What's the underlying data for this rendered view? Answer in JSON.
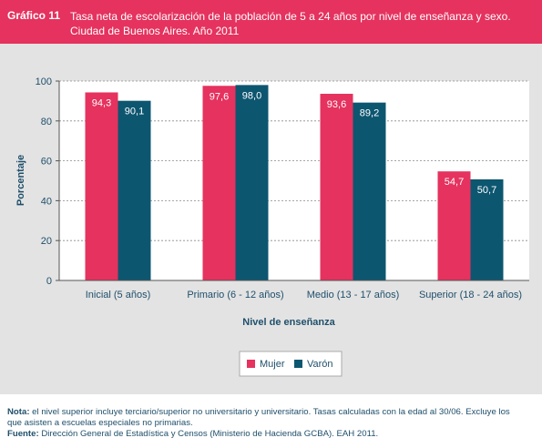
{
  "header": {
    "label": "Gráfico 11",
    "title_line1": "Tasa neta de escolarización de la población de 5 a 24 años por nivel de enseñanza y sexo.",
    "title_line2": "Ciudad de Buenos Aires. Año 2011"
  },
  "colors": {
    "header_bg": "#e5325e",
    "panel_bg": "#e3e3e3",
    "mujer": "#e5325e",
    "varon": "#0d5670",
    "text_dark": "#1f4f6b"
  },
  "chart_data": {
    "type": "bar",
    "categories": [
      "Inicial (5 años)",
      "Primario (6 - 12 años)",
      "Medio (13 - 17 años)",
      "Superior (18 - 24 años)"
    ],
    "series": [
      {
        "name": "Mujer",
        "values": [
          94.3,
          97.6,
          93.6,
          54.7
        ],
        "labels": [
          "94,3",
          "97,6",
          "93,6",
          "54,7"
        ]
      },
      {
        "name": "Varón",
        "values": [
          90.1,
          98.0,
          89.2,
          50.7
        ],
        "labels": [
          "90,1",
          "98,0",
          "89,2",
          "50,7"
        ]
      }
    ],
    "xlabel": "Nivel de enseñanza",
    "ylabel": "Porcentaje",
    "ylim": [
      0,
      100
    ],
    "yticks": [
      "0",
      "20",
      "40",
      "60",
      "80",
      "100"
    ],
    "grid": "horizontal dashed",
    "legend_position": "bottom-center"
  },
  "notes": {
    "nota_label": "Nota:",
    "nota_text_1": " el nivel superior incluye terciario/superior no universitario y universitario. Tasas calculadas con la edad al 30/06. Excluye los",
    "nota_text_2": "que asisten a escuelas especiales no primarias.",
    "fuente_label": "Fuente:",
    "fuente_text": " Dirección General de Estadística y Censos (Ministerio de Hacienda GCBA). EAH 2011."
  }
}
